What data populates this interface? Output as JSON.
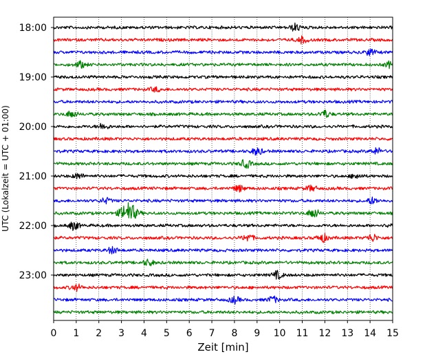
{
  "chart_data": {
    "type": "line",
    "title": "",
    "xlabel": "Zeit  [min]",
    "ylabel": "UTC (Lokalzeit = UTC + 01:00)",
    "xlim": [
      0,
      15
    ],
    "xticks": [
      0,
      1,
      2,
      3,
      4,
      5,
      6,
      7,
      8,
      9,
      10,
      11,
      12,
      13,
      14,
      15
    ],
    "x_gridlines": "dotted vertical at each minute",
    "trace_interval_minutes": 15,
    "trace_color_cycle": [
      "#000000",
      "#ff0000",
      "#0000ff",
      "#008000"
    ],
    "hour_labels": [
      "18:00",
      "19:00",
      "20:00",
      "21:00",
      "22:00",
      "23:00"
    ],
    "traces": [
      {
        "start": "18:00",
        "events": [
          {
            "t": 10.7,
            "amp": 0.35
          }
        ]
      },
      {
        "start": "18:15",
        "events": [
          {
            "t": 11.0,
            "amp": 0.3
          }
        ]
      },
      {
        "start": "18:30",
        "events": [
          {
            "t": 14.0,
            "amp": 0.3
          }
        ]
      },
      {
        "start": "18:45",
        "events": [
          {
            "t": 1.2,
            "amp": 0.3
          },
          {
            "t": 14.9,
            "amp": 0.3
          }
        ]
      },
      {
        "start": "19:00",
        "events": []
      },
      {
        "start": "19:15",
        "events": [
          {
            "t": 4.5,
            "amp": 0.2
          }
        ]
      },
      {
        "start": "19:30",
        "events": []
      },
      {
        "start": "19:45",
        "events": [
          {
            "t": 0.8,
            "amp": 0.3
          },
          {
            "t": 12.0,
            "amp": 0.35
          }
        ]
      },
      {
        "start": "20:00",
        "events": [
          {
            "t": 2.2,
            "amp": 0.3
          }
        ]
      },
      {
        "start": "20:15",
        "events": []
      },
      {
        "start": "20:30",
        "events": [
          {
            "t": 9.0,
            "amp": 0.35
          },
          {
            "t": 14.3,
            "amp": 0.3
          }
        ]
      },
      {
        "start": "20:45",
        "events": [
          {
            "t": 8.5,
            "amp": 0.4
          }
        ]
      },
      {
        "start": "21:00",
        "events": [
          {
            "t": 1.1,
            "amp": 0.25
          },
          {
            "t": 13.4,
            "amp": 0.25
          }
        ]
      },
      {
        "start": "21:15",
        "events": [
          {
            "t": 8.2,
            "amp": 0.3
          },
          {
            "t": 11.4,
            "amp": 0.25
          }
        ]
      },
      {
        "start": "21:30",
        "events": [
          {
            "t": 2.3,
            "amp": 0.25
          },
          {
            "t": 14.1,
            "amp": 0.3
          }
        ]
      },
      {
        "start": "21:45",
        "events": [
          {
            "t": 3.3,
            "amp": 1.0
          },
          {
            "t": 11.5,
            "amp": 0.45
          }
        ]
      },
      {
        "start": "22:00",
        "events": [
          {
            "t": 0.9,
            "amp": 0.4
          },
          {
            "t": 15.0,
            "amp": 0.35
          }
        ]
      },
      {
        "start": "22:15",
        "events": [
          {
            "t": 8.6,
            "amp": 0.35
          },
          {
            "t": 11.9,
            "amp": 0.4
          },
          {
            "t": 14.1,
            "amp": 0.35
          }
        ]
      },
      {
        "start": "22:30",
        "events": [
          {
            "t": 2.6,
            "amp": 0.3
          }
        ]
      },
      {
        "start": "22:45",
        "events": [
          {
            "t": 4.2,
            "amp": 0.3
          }
        ]
      },
      {
        "start": "23:00",
        "events": [
          {
            "t": 9.9,
            "amp": 0.35
          }
        ]
      },
      {
        "start": "23:15",
        "events": [
          {
            "t": 1.0,
            "amp": 0.3
          }
        ]
      },
      {
        "start": "23:30",
        "events": [
          {
            "t": 8.0,
            "amp": 0.3
          },
          {
            "t": 9.7,
            "amp": 0.3
          }
        ]
      },
      {
        "start": "23:45",
        "events": []
      }
    ]
  }
}
